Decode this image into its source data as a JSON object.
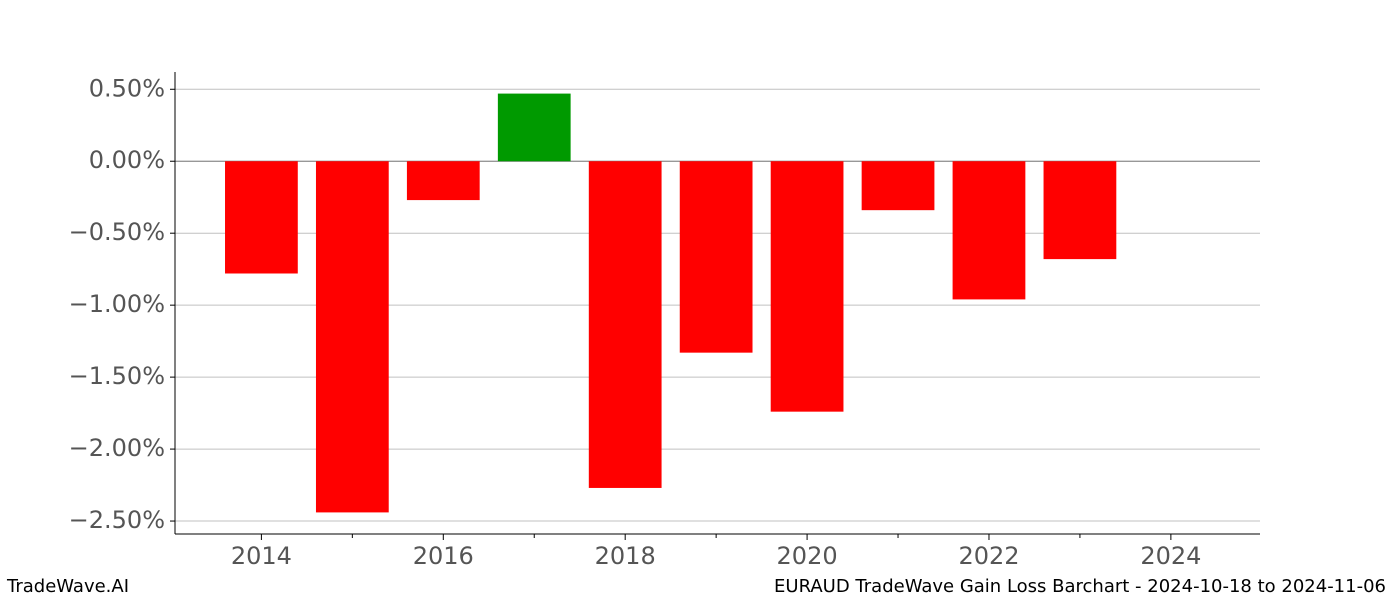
{
  "chart_data": {
    "type": "bar",
    "x": [
      2014,
      2015,
      2016,
      2017,
      2018,
      2019,
      2020,
      2021,
      2022,
      2023
    ],
    "values": [
      -0.78,
      -2.44,
      -0.27,
      0.47,
      -2.27,
      -1.33,
      -1.74,
      -0.34,
      -0.96,
      -0.68
    ],
    "positive_color": "#009a00",
    "negative_color": "#ff0000",
    "xlim": [
      2013.05,
      2024.98
    ],
    "xticks": [
      2014,
      2016,
      2018,
      2020,
      2022,
      2024
    ],
    "xminorticks": [
      2015,
      2017,
      2019,
      2021,
      2023
    ],
    "ylim": [
      -2.59,
      0.62
    ],
    "yticks": [
      {
        "value": 0.5,
        "label": "0.50%"
      },
      {
        "value": 0,
        "label": "0.00%"
      },
      {
        "value": -0.5,
        "label": "−0.50%"
      },
      {
        "value": -1,
        "label": "−1.00%"
      },
      {
        "value": -1.5,
        "label": "−1.50%"
      },
      {
        "value": -2,
        "label": "−2.00%"
      },
      {
        "value": -2.5,
        "label": "−2.50%"
      }
    ],
    "grid": true,
    "watermark": "TradeWave.AI",
    "title": "EURAUD TradeWave Gain Loss Barchart - 2024-10-18 to 2024-11-06"
  }
}
